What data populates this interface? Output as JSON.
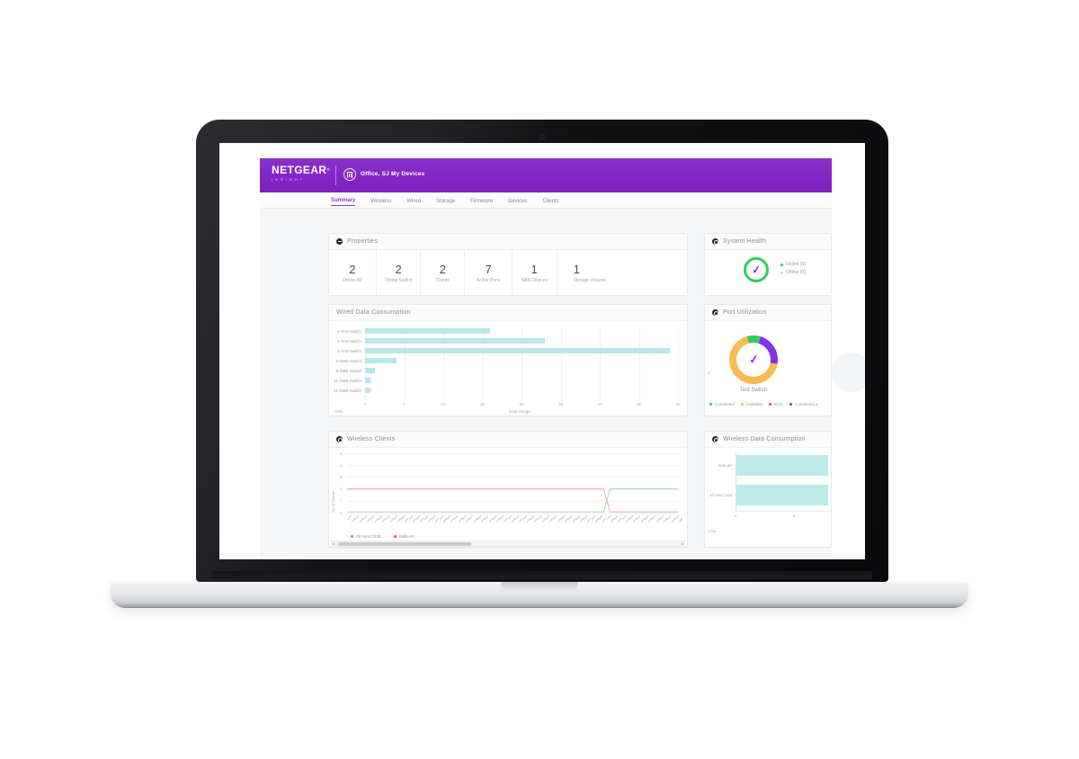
{
  "accent_colors": {
    "brand_purple": "#7b1fbf",
    "teal_bar": "#b9e6e8",
    "green": "#2fcc5e",
    "amber": "#f7bb54",
    "red": "#f04438",
    "purple": "#8232e8"
  },
  "appbar": {
    "brand": "NETGEAR",
    "brand_trademark": "®",
    "brand_subtitle": "INSIGHT",
    "org_selector": "Office, SJ",
    "org_caret": "▾",
    "menu_item": "My Devices"
  },
  "tabs": {
    "active": "Summary",
    "items": [
      "Summary",
      "Wireless",
      "Wired",
      "Storage",
      "Firmware",
      "Devices",
      "Clients"
    ]
  },
  "properties": {
    "title": "Properties",
    "stats": [
      {
        "value": "2",
        "label": "Online AP"
      },
      {
        "value": "2",
        "label": "Online Switch"
      },
      {
        "value": "2",
        "label": "Clients"
      },
      {
        "value": "7",
        "label": "Active Ports"
      },
      {
        "value": "1",
        "label": "NAS Devices"
      },
      {
        "value": "1",
        "label": "Storage Volume"
      }
    ]
  },
  "system_health": {
    "title": "System Health",
    "status_glyph": "✓",
    "legend": [
      {
        "label": "Online (5)",
        "color": "#2fcc5e"
      },
      {
        "label": "Offline (0)",
        "color": "#d2d2d2"
      }
    ]
  },
  "port_utilization": {
    "title": "Port Utilization",
    "prev_arrow": "‹",
    "center_glyph": "✓",
    "device_label": "Test Switch"
  },
  "wireless_clients_panel": {
    "title": "Wireless Clients"
  },
  "wireless_data_panel": {
    "title": "Wireless Data Consumption"
  },
  "wired_panel": {
    "title": "Wired Data Consumption"
  },
  "chart_data": [
    {
      "id": "wired",
      "type": "bar",
      "orientation": "horizontal",
      "title": "Wired Data Consumption",
      "categories": [
        "1-Test-Switch",
        "2-Test-Switch",
        "3-Test-Switch",
        "5-SMB-Switch",
        "8-SMB-Switch",
        "11-SMB-Switch",
        "21-SMB-Switch"
      ],
      "values": [
        16,
        23,
        39,
        4,
        1.3,
        0.7,
        0.7
      ],
      "xlabel": "Data Usage",
      "unit_label": "(GB)",
      "x_ticks": [
        0,
        5,
        10,
        15,
        20,
        25,
        30,
        35,
        40
      ],
      "xlim": [
        0,
        40
      ],
      "bar_color": "#b9e6e8",
      "grid": true,
      "legend_position": "none"
    },
    {
      "id": "port_utilization",
      "type": "pie",
      "style": "donut",
      "title": "Port Utilization",
      "center_label": "Test Switch",
      "start_angle_deg": -15,
      "slices": [
        {
          "name": "Connected",
          "color": "#2fcc5e",
          "percent": 9
        },
        {
          "name": "Connected a",
          "color": "#8232e8",
          "percent": 23
        },
        {
          "name": "Available",
          "color": "#f7bb54",
          "percent": 68
        },
        {
          "name": "Error",
          "color": "#f04438",
          "percent": 0
        }
      ],
      "legend": [
        {
          "label": "Connected",
          "color": "#2fcc5e"
        },
        {
          "label": "Available",
          "color": "#f7bb54"
        },
        {
          "label": "Error",
          "color": "#f04438"
        },
        {
          "label": "Connected a",
          "color": "#8232e8"
        }
      ],
      "legend_position": "bottom"
    },
    {
      "id": "wireless_clients",
      "type": "line",
      "title": "Wireless Clients",
      "ylabel": "No Of Clients",
      "y_ticks": [
        0,
        1,
        2,
        3,
        4,
        5
      ],
      "ylim": [
        0,
        5
      ],
      "grid": true,
      "x_axis_note": "dense rotated timestamp tick labels (illegible at rendered scale)",
      "x_tick_count": 88,
      "series": [
        {
          "name": "AP-MAC2328",
          "color": "#34c759",
          "line_color": "#a8dcb2",
          "points": [
            [
              0,
              0.07
            ],
            [
              0.775,
              0.07
            ],
            [
              0.795,
              2
            ],
            [
              1,
              2
            ]
          ]
        },
        {
          "name": "SMB-AP",
          "color": "#f04438",
          "line_color": "#f2a6a0",
          "points": [
            [
              0,
              2
            ],
            [
              0.775,
              2
            ],
            [
              0.795,
              0.07
            ],
            [
              1,
              0.07
            ]
          ]
        }
      ],
      "legend_position": "bottom-left",
      "has_horizontal_scrollbar": true
    },
    {
      "id": "wireless_data",
      "type": "bar",
      "orientation": "horizontal",
      "title": "Wireless Data Consumption",
      "categories": [
        "SMB-AP",
        "AP-MAC2328"
      ],
      "values": [
        7.9,
        7.9
      ],
      "x_ticks": [
        0,
        5
      ],
      "xlim": [
        0,
        8
      ],
      "unit_label": "(GB)",
      "bar_color": "#bfe8ea",
      "grid": false,
      "legend_position": "none"
    }
  ]
}
